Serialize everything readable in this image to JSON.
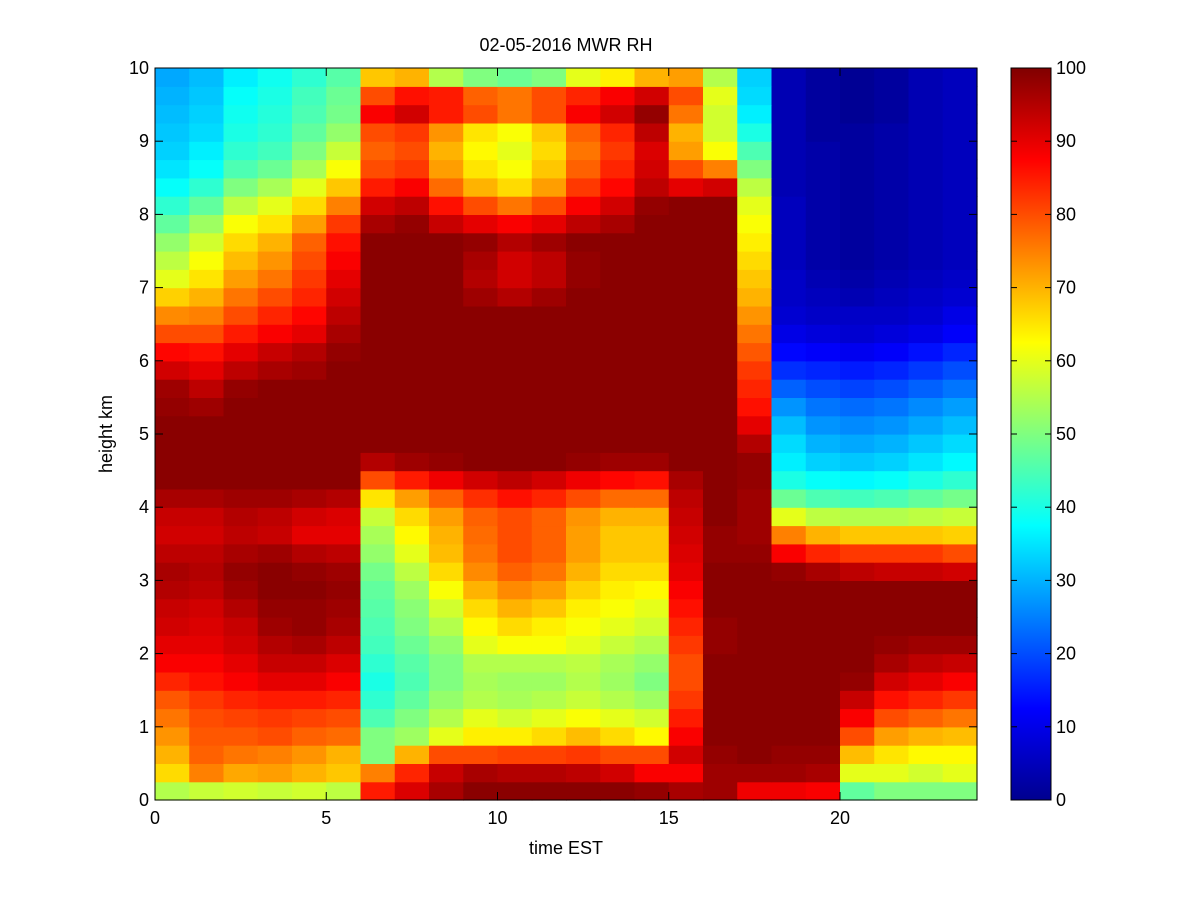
{
  "chart_data": {
    "type": "heatmap",
    "title": "02-05-2016 MWR RH",
    "xlabel": "time EST",
    "ylabel": "height km",
    "xlim": [
      0,
      24
    ],
    "ylim": [
      0,
      10
    ],
    "x_ticks": [
      "0",
      "5",
      "10",
      "15",
      "20"
    ],
    "y_ticks": [
      "0",
      "1",
      "2",
      "3",
      "4",
      "5",
      "6",
      "7",
      "8",
      "9",
      "10"
    ],
    "colorbar": {
      "colormap": "jet",
      "range": [
        0,
        100
      ],
      "ticks": [
        "0",
        "10",
        "20",
        "30",
        "40",
        "50",
        "60",
        "70",
        "80",
        "90",
        "100"
      ]
    },
    "x": [
      0.5,
      1.5,
      2.5,
      3.5,
      4.5,
      5.5,
      6.5,
      7.5,
      8.5,
      9.5,
      10.5,
      11.5,
      12.5,
      13.5,
      14.5,
      15.5,
      16.5,
      17.5,
      18.5,
      19.5,
      20.5,
      21.5,
      22.5,
      23.5
    ],
    "y": [
      0.0,
      0.25,
      0.5,
      0.75,
      1.0,
      1.25,
      1.5,
      1.75,
      2.0,
      2.25,
      2.5,
      2.75,
      3.0,
      3.25,
      3.5,
      3.75,
      4.0,
      4.25,
      4.5,
      4.75,
      5.0,
      5.25,
      5.5,
      5.75,
      6.0,
      6.25,
      6.5,
      6.75,
      7.0,
      7.25,
      7.5,
      7.75,
      8.0,
      8.25,
      8.5,
      8.75,
      9.0,
      9.25,
      9.5,
      9.75
    ],
    "z": [
      [
        55,
        57,
        58,
        57,
        58,
        56,
        85,
        91,
        96,
        99,
        99,
        99,
        99,
        99,
        98,
        96,
        97,
        89,
        89,
        88,
        47,
        50,
        50,
        50
      ],
      [
        66,
        75,
        71,
        72,
        70,
        68,
        75,
        84,
        93,
        96,
        95,
        95,
        94,
        92,
        88,
        88,
        97,
        97,
        97,
        96,
        60,
        60,
        58,
        60
      ],
      [
        70,
        78,
        76,
        75,
        73,
        70,
        50,
        70,
        80,
        80,
        81,
        81,
        82,
        80,
        80,
        92,
        98,
        99,
        98,
        98,
        69,
        65,
        63,
        63
      ],
      [
        73,
        79,
        79,
        80,
        78,
        77,
        50,
        53,
        60,
        64,
        64,
        66,
        69,
        66,
        63,
        88,
        99,
        99,
        99,
        99,
        80,
        72,
        70,
        69
      ],
      [
        76,
        80,
        81,
        82,
        81,
        80,
        45,
        50,
        55,
        60,
        58,
        60,
        62,
        60,
        58,
        85,
        99,
        99,
        99,
        99,
        88,
        80,
        78,
        76
      ],
      [
        79,
        82,
        84,
        85,
        85,
        84,
        42,
        47,
        52,
        55,
        54,
        55,
        57,
        55,
        53,
        82,
        99,
        99,
        99,
        99,
        93,
        86,
        84,
        82
      ],
      [
        84,
        86,
        88,
        90,
        90,
        88,
        40,
        45,
        50,
        54,
        53,
        53,
        55,
        53,
        50,
        80,
        99,
        99,
        99,
        99,
        98,
        92,
        90,
        88
      ],
      [
        88,
        88,
        90,
        93,
        93,
        91,
        42,
        46,
        50,
        55,
        55,
        55,
        56,
        54,
        52,
        80,
        99,
        99,
        99,
        99,
        99,
        96,
        94,
        93
      ],
      [
        90,
        90,
        92,
        95,
        96,
        94,
        44,
        48,
        52,
        60,
        62,
        62,
        60,
        57,
        55,
        82,
        98,
        99,
        99,
        99,
        99,
        98,
        97,
        97
      ],
      [
        92,
        91,
        93,
        97,
        98,
        96,
        45,
        50,
        55,
        63,
        66,
        64,
        62,
        60,
        58,
        84,
        98,
        99,
        99,
        99,
        99,
        99,
        99,
        99
      ],
      [
        93,
        92,
        95,
        98,
        98,
        97,
        46,
        51,
        58,
        66,
        70,
        68,
        64,
        62,
        60,
        86,
        99,
        99,
        99,
        99,
        99,
        99,
        99,
        99
      ],
      [
        95,
        94,
        97,
        99,
        99,
        98,
        47,
        53,
        62,
        70,
        74,
        72,
        67,
        64,
        63,
        88,
        99,
        99,
        99,
        99,
        99,
        99,
        99,
        99
      ],
      [
        96,
        95,
        98,
        99,
        98,
        97,
        49,
        56,
        66,
        74,
        78,
        76,
        70,
        66,
        66,
        90,
        99,
        99,
        98,
        96,
        94,
        93,
        93,
        92
      ],
      [
        94,
        94,
        96,
        97,
        95,
        94,
        52,
        60,
        69,
        76,
        80,
        78,
        72,
        68,
        68,
        91,
        98,
        98,
        88,
        84,
        82,
        82,
        82,
        80
      ],
      [
        92,
        92,
        94,
        93,
        90,
        90,
        54,
        63,
        70,
        77,
        80,
        78,
        72,
        68,
        68,
        92,
        98,
        97,
        75,
        70,
        68,
        68,
        68,
        67
      ],
      [
        93,
        93,
        95,
        94,
        92,
        91,
        57,
        66,
        72,
        78,
        80,
        78,
        73,
        70,
        70,
        93,
        99,
        97,
        60,
        56,
        55,
        55,
        56,
        57
      ],
      [
        96,
        96,
        97,
        97,
        96,
        95,
        65,
        72,
        78,
        83,
        86,
        84,
        80,
        77,
        77,
        94,
        99,
        97,
        48,
        45,
        44,
        45,
        47,
        49
      ],
      [
        99,
        99,
        99,
        99,
        99,
        99,
        80,
        85,
        89,
        92,
        94,
        92,
        89,
        87,
        86,
        96,
        99,
        98,
        40,
        38,
        37,
        38,
        40,
        42
      ],
      [
        99,
        99,
        99,
        99,
        99,
        99,
        95,
        97,
        98,
        99,
        99,
        99,
        98,
        97,
        97,
        99,
        99,
        98,
        36,
        33,
        32,
        33,
        35,
        37
      ],
      [
        99,
        99,
        99,
        99,
        99,
        99,
        99,
        99,
        99,
        99,
        99,
        99,
        99,
        99,
        99,
        99,
        99,
        95,
        34,
        30,
        29,
        30,
        32,
        34
      ],
      [
        99,
        99,
        99,
        99,
        99,
        99,
        99,
        99,
        99,
        99,
        99,
        99,
        99,
        99,
        99,
        99,
        99,
        90,
        31,
        27,
        26,
        27,
        29,
        31
      ],
      [
        98,
        97,
        99,
        99,
        99,
        99,
        99,
        99,
        99,
        99,
        99,
        99,
        99,
        99,
        99,
        99,
        99,
        86,
        27,
        24,
        23,
        24,
        26,
        28
      ],
      [
        97,
        94,
        98,
        99,
        99,
        99,
        99,
        99,
        99,
        99,
        99,
        99,
        99,
        99,
        99,
        99,
        99,
        84,
        22,
        20,
        19,
        20,
        22,
        24
      ],
      [
        92,
        90,
        94,
        96,
        97,
        99,
        99,
        99,
        99,
        99,
        99,
        99,
        99,
        99,
        99,
        99,
        99,
        82,
        17,
        16,
        15,
        16,
        18,
        20
      ],
      [
        87,
        86,
        90,
        93,
        95,
        98,
        99,
        99,
        99,
        99,
        99,
        99,
        99,
        99,
        99,
        99,
        99,
        79,
        13,
        12,
        11,
        12,
        14,
        16
      ],
      [
        80,
        80,
        85,
        88,
        90,
        96,
        99,
        99,
        99,
        99,
        99,
        99,
        99,
        99,
        99,
        99,
        99,
        76,
        10,
        9,
        8,
        9,
        10,
        12
      ],
      [
        74,
        75,
        80,
        84,
        87,
        94,
        99,
        99,
        99,
        99,
        99,
        99,
        99,
        99,
        99,
        99,
        99,
        73,
        8,
        7,
        7,
        7,
        8,
        10
      ],
      [
        67,
        70,
        76,
        80,
        84,
        92,
        99,
        99,
        99,
        97,
        95,
        97,
        99,
        99,
        99,
        99,
        99,
        70,
        7,
        6,
        5,
        6,
        7,
        8
      ],
      [
        60,
        65,
        72,
        76,
        82,
        90,
        99,
        99,
        99,
        95,
        92,
        94,
        98,
        99,
        99,
        99,
        99,
        68,
        7,
        5,
        4,
        5,
        6,
        7
      ],
      [
        56,
        62,
        69,
        73,
        80,
        88,
        99,
        99,
        99,
        96,
        92,
        94,
        98,
        99,
        99,
        99,
        99,
        66,
        6,
        4,
        3,
        4,
        5,
        6
      ],
      [
        52,
        58,
        66,
        70,
        78,
        86,
        99,
        99,
        99,
        98,
        95,
        97,
        99,
        99,
        99,
        99,
        99,
        64,
        6,
        4,
        3,
        4,
        5,
        6
      ],
      [
        47,
        53,
        62,
        65,
        72,
        82,
        96,
        98,
        93,
        90,
        88,
        90,
        94,
        96,
        99,
        99,
        99,
        62,
        6,
        4,
        3,
        4,
        5,
        6
      ],
      [
        42,
        47,
        56,
        60,
        66,
        75,
        92,
        94,
        86,
        80,
        76,
        80,
        88,
        92,
        98,
        99,
        99,
        60,
        6,
        4,
        3,
        4,
        5,
        6
      ],
      [
        38,
        42,
        50,
        54,
        60,
        68,
        85,
        88,
        77,
        70,
        66,
        72,
        82,
        87,
        94,
        90,
        92,
        56,
        5,
        4,
        3,
        4,
        5,
        6
      ],
      [
        35,
        38,
        45,
        48,
        54,
        62,
        80,
        82,
        72,
        65,
        62,
        68,
        78,
        84,
        92,
        80,
        75,
        50,
        5,
        4,
        3,
        4,
        5,
        6
      ],
      [
        33,
        36,
        42,
        44,
        50,
        57,
        78,
        80,
        70,
        63,
        60,
        66,
        76,
        82,
        91,
        72,
        62,
        45,
        5,
        4,
        3,
        4,
        5,
        6
      ],
      [
        32,
        34,
        40,
        42,
        47,
        52,
        80,
        82,
        73,
        65,
        62,
        68,
        78,
        84,
        94,
        70,
        58,
        40,
        5,
        3,
        3,
        4,
        5,
        6
      ],
      [
        31,
        33,
        39,
        41,
        45,
        49,
        88,
        92,
        85,
        80,
        76,
        80,
        88,
        92,
        98,
        76,
        58,
        36,
        5,
        3,
        2,
        3,
        5,
        6
      ],
      [
        30,
        32,
        38,
        40,
        44,
        48,
        80,
        86,
        85,
        78,
        76,
        80,
        84,
        88,
        92,
        80,
        60,
        34,
        5,
        3,
        2,
        3,
        5,
        6
      ],
      [
        29,
        31,
        36,
        39,
        42,
        46,
        68,
        70,
        55,
        50,
        48,
        50,
        60,
        64,
        70,
        72,
        55,
        33,
        5,
        3,
        2,
        3,
        5,
        6
      ]
    ]
  }
}
